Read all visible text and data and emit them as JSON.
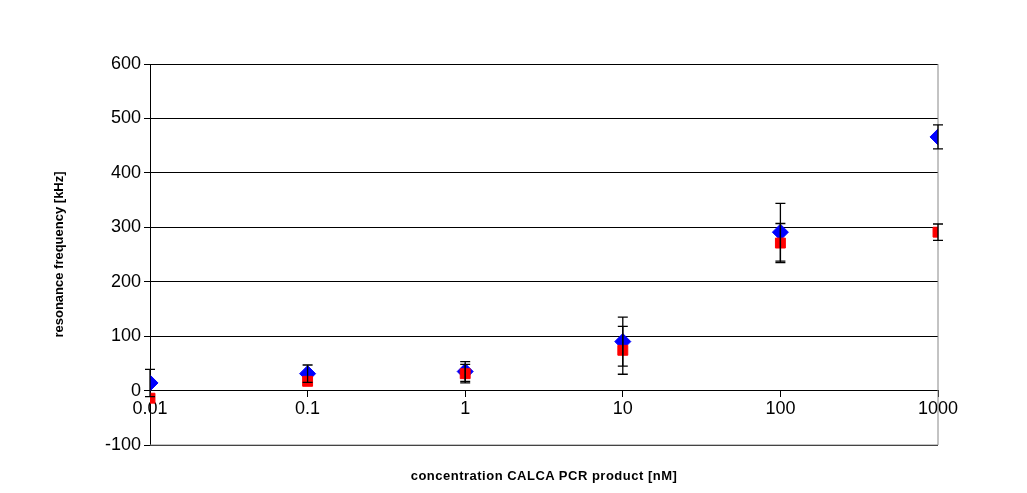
{
  "chart_data": {
    "type": "scatter",
    "xlabel": "concentration CALCA PCR product [nM]",
    "ylabel": "resonance frequency [kHz]",
    "x": [
      0.01,
      0.1,
      1,
      10,
      100,
      1000
    ],
    "series": [
      {
        "color": "#0000ff",
        "marker": "diamond",
        "values": [
          14,
          31,
          35,
          90,
          291,
          466
        ],
        "errors": [
          25,
          16,
          18,
          45,
          53,
          22
        ]
      },
      {
        "color": "#ff0000",
        "marker": "square",
        "values": [
          -14,
          17,
          31,
          74,
          271,
          291
        ],
        "errors": [
          null,
          null,
          17,
          44,
          36,
          15
        ]
      }
    ],
    "log": "x",
    "xlim": [
      0.01,
      1000
    ],
    "xticks": [
      0.01,
      0.1,
      1,
      10,
      100,
      1000
    ],
    "ylim": [
      -100,
      600
    ],
    "yticks": [
      -100,
      0,
      100,
      200,
      300,
      400,
      500,
      600
    ],
    "grid": "y",
    "legend": false
  }
}
